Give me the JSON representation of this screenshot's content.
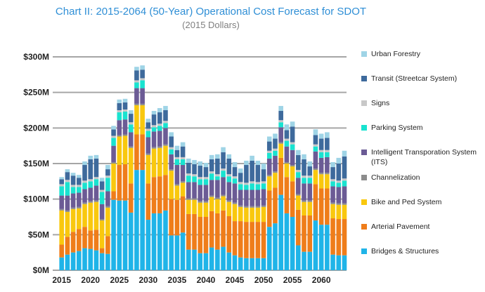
{
  "chart_data": {
    "type": "bar",
    "stacked": true,
    "title": "Chart II: 2015-2064 (50-Year) Operational Cost Forecast for SDOT",
    "subtitle": "(2015 Dollars)",
    "xlabel": "",
    "ylabel": "",
    "ylim": [
      0,
      300
    ],
    "y_unit": "$M",
    "y_ticks": [
      "$0M",
      "$50M",
      "$100M",
      "$150M",
      "$200M",
      "$250M",
      "$300M"
    ],
    "x_ticks": [
      "2015",
      "2020",
      "2025",
      "2030",
      "2035",
      "2040",
      "2045",
      "2050",
      "2055",
      "2060"
    ],
    "grid": true,
    "legend_position": "right",
    "categories": [
      2015,
      2016,
      2017,
      2018,
      2019,
      2020,
      2021,
      2022,
      2023,
      2024,
      2025,
      2026,
      2027,
      2028,
      2029,
      2030,
      2031,
      2032,
      2033,
      2034,
      2035,
      2036,
      2037,
      2038,
      2039,
      2040,
      2041,
      2042,
      2043,
      2044,
      2045,
      2046,
      2047,
      2048,
      2049,
      2050,
      2051,
      2052,
      2053,
      2054,
      2055,
      2056,
      2057,
      2058,
      2059,
      2060,
      2061,
      2062,
      2063,
      2064
    ],
    "series": [
      {
        "name": "Bridges & Structures",
        "color": "#1fb4e8",
        "values": [
          18,
          22,
          25,
          27,
          31,
          30,
          28,
          24,
          23,
          99,
          98,
          98,
          81,
          141,
          141,
          71,
          80,
          80,
          84,
          49,
          49,
          53,
          29,
          29,
          24,
          24,
          32,
          29,
          33,
          25,
          21,
          18,
          17,
          17,
          17,
          17,
          61,
          66,
          106,
          80,
          75,
          35,
          26,
          26,
          70,
          64,
          64,
          22,
          21,
          21
        ]
      },
      {
        "name": "Arterial Pavement",
        "color": "#ef7d1a",
        "values": [
          18,
          25,
          29,
          31,
          30,
          26,
          29,
          7,
          25,
          12,
          50,
          51,
          41,
          50,
          50,
          51,
          51,
          52,
          50,
          51,
          50,
          51,
          50,
          50,
          51,
          51,
          51,
          51,
          51,
          51,
          48,
          51,
          51,
          51,
          51,
          51,
          51,
          50,
          52,
          51,
          50,
          50,
          51,
          51,
          51,
          51,
          51,
          51,
          51,
          51
        ]
      },
      {
        "name": "Bike and Ped System",
        "color": "#f9c80e",
        "values": [
          48,
          35,
          32,
          29,
          32,
          39,
          39,
          39,
          40,
          39,
          40,
          40,
          50,
          41,
          41,
          40,
          40,
          40,
          41,
          40,
          20,
          19,
          20,
          20,
          20,
          20,
          20,
          20,
          20,
          20,
          24,
          20,
          20,
          20,
          20,
          21,
          20,
          21,
          20,
          19,
          21,
          20,
          19,
          19,
          20,
          20,
          20,
          20,
          20,
          20
        ]
      },
      {
        "name": "Channelization",
        "color": "#8c8c8c",
        "values": [
          2,
          2,
          2,
          2,
          2,
          2,
          2,
          2,
          2,
          2,
          2,
          2,
          2,
          2,
          2,
          2,
          2,
          2,
          2,
          2,
          2,
          2,
          2,
          2,
          2,
          2,
          2,
          2,
          2,
          2,
          2,
          2,
          2,
          2,
          2,
          2,
          2,
          2,
          2,
          2,
          2,
          2,
          2,
          2,
          2,
          2,
          2,
          2,
          2,
          2
        ]
      },
      {
        "name": "Intelligent Transporation System (ITS)",
        "color": "#6b5b95",
        "values": [
          19,
          21,
          20,
          20,
          19,
          19,
          21,
          21,
          21,
          23,
          21,
          21,
          20,
          22,
          22,
          23,
          22,
          22,
          23,
          21,
          27,
          23,
          23,
          23,
          23,
          23,
          22,
          25,
          25,
          26,
          27,
          22,
          23,
          23,
          23,
          23,
          23,
          22,
          21,
          22,
          21,
          23,
          24,
          24,
          24,
          21,
          22,
          23,
          23,
          24
        ]
      },
      {
        "name": "Parking System",
        "color": "#19e3d0",
        "values": [
          13,
          19,
          9,
          8,
          9,
          9,
          9,
          17,
          19,
          11,
          11,
          11,
          11,
          8,
          11,
          9,
          6,
          7,
          7,
          7,
          8,
          8,
          9,
          8,
          8,
          8,
          9,
          5,
          9,
          8,
          7,
          8,
          7,
          9,
          8,
          8,
          8,
          7,
          7,
          8,
          8,
          8,
          8,
          8,
          7,
          8,
          7,
          7,
          6,
          8
        ]
      },
      {
        "name": "Signs",
        "color": "#c8c8c8",
        "values": [
          3,
          3,
          3,
          3,
          3,
          3,
          3,
          3,
          3,
          3,
          3,
          3,
          3,
          3,
          3,
          3,
          3,
          3,
          3,
          3,
          3,
          3,
          3,
          3,
          3,
          3,
          3,
          3,
          3,
          3,
          3,
          3,
          3,
          3,
          3,
          3,
          3,
          3,
          3,
          3,
          3,
          3,
          3,
          3,
          3,
          3,
          3,
          3,
          3,
          3
        ]
      },
      {
        "name": "Transit (Streetcar System)",
        "color": "#3e6a9c",
        "values": [
          7,
          11,
          13,
          10,
          22,
          28,
          26,
          12,
          9,
          9,
          10,
          10,
          12,
          14,
          12,
          9,
          15,
          16,
          15,
          15,
          10,
          15,
          15,
          14,
          16,
          14,
          17,
          22,
          23,
          22,
          13,
          13,
          25,
          29,
          24,
          17,
          13,
          14,
          13,
          12,
          22,
          21,
          23,
          13,
          13,
          16,
          17,
          17,
          24,
          31
        ]
      },
      {
        "name": "Urban Forestry",
        "color": "#9fd4e6",
        "values": [
          3,
          4,
          4,
          4,
          5,
          5,
          5,
          5,
          6,
          5,
          5,
          5,
          5,
          5,
          6,
          5,
          5,
          6,
          6,
          6,
          6,
          6,
          6,
          6,
          6,
          6,
          6,
          6,
          7,
          6,
          7,
          6,
          6,
          7,
          6,
          8,
          7,
          7,
          7,
          8,
          7,
          7,
          7,
          7,
          8,
          7,
          8,
          7,
          8,
          8
        ]
      }
    ]
  }
}
